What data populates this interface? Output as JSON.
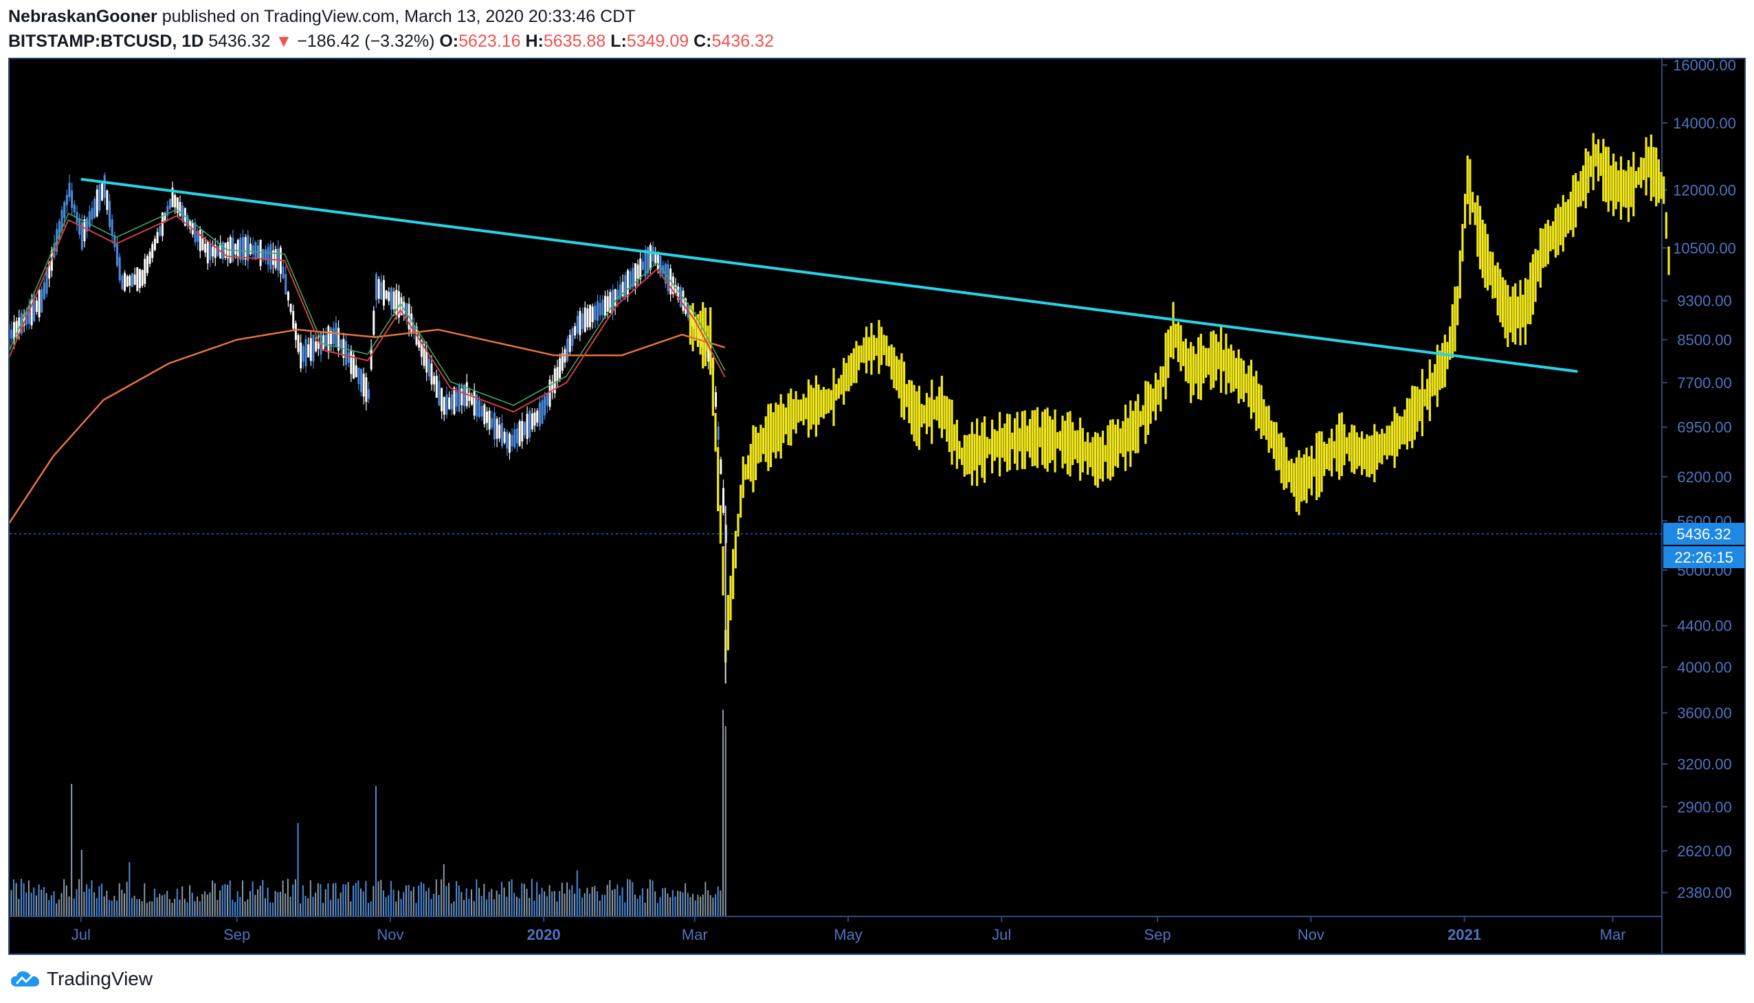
{
  "header": {
    "author": "NebraskanGooner",
    "published_text": "published on TradingView.com, March 13, 2020 20:33:46 CDT",
    "symbol": "BITSTAMP:BTCUSD, 1D",
    "last": "5436.32",
    "change": "−186.42 (−3.32%)",
    "o_label": "O:",
    "o_value": "5623.16",
    "h_label": "H:",
    "h_value": "5635.88",
    "l_label": "L:",
    "l_value": "5349.09",
    "c_label": "C:",
    "c_value": "5436.32",
    "down_arrow": "▼"
  },
  "footer": {
    "brand": "TradingView",
    "logo_icon": "tradingview-cloud-icon"
  },
  "chart_data": {
    "type": "line",
    "price_scale": "log",
    "y_ticks": [
      "16000.00",
      "14000.00",
      "12000.00",
      "10500.00",
      "9300.00",
      "8500.00",
      "7700.00",
      "6950.00",
      "6200.00",
      "5600.00",
      "5000.00",
      "4400.00",
      "4000.00",
      "3600.00",
      "3200.00",
      "2900.00",
      "2620.00",
      "2380.00"
    ],
    "x_ticks": [
      {
        "label": "Jul",
        "bold": false
      },
      {
        "label": "Sep",
        "bold": false
      },
      {
        "label": "Nov",
        "bold": false
      },
      {
        "label": "2020",
        "bold": true
      },
      {
        "label": "Mar",
        "bold": false
      },
      {
        "label": "May",
        "bold": false
      },
      {
        "label": "Jul",
        "bold": false
      },
      {
        "label": "Sep",
        "bold": false
      },
      {
        "label": "Nov",
        "bold": false
      },
      {
        "label": "2021",
        "bold": true
      },
      {
        "label": "Mar",
        "bold": false
      }
    ],
    "last_price": {
      "value": 5436.32,
      "label": "5436.32",
      "countdown": "22:26:15"
    },
    "price_series": [
      {
        "date": "2019-06-01",
        "close": 8500
      },
      {
        "date": "2019-06-15",
        "close": 9300
      },
      {
        "date": "2019-06-26",
        "close": 12000
      },
      {
        "date": "2019-07-01",
        "close": 10800
      },
      {
        "date": "2019-07-10",
        "close": 12100
      },
      {
        "date": "2019-07-17",
        "close": 9700
      },
      {
        "date": "2019-07-25",
        "close": 9800
      },
      {
        "date": "2019-08-06",
        "close": 11800
      },
      {
        "date": "2019-08-20",
        "close": 10400
      },
      {
        "date": "2019-09-05",
        "close": 10500
      },
      {
        "date": "2019-09-18",
        "close": 10200
      },
      {
        "date": "2019-09-26",
        "close": 8200
      },
      {
        "date": "2019-10-10",
        "close": 8600
      },
      {
        "date": "2019-10-23",
        "close": 7500
      },
      {
        "date": "2019-10-26",
        "close": 9600
      },
      {
        "date": "2019-11-07",
        "close": 9100
      },
      {
        "date": "2019-11-22",
        "close": 7300
      },
      {
        "date": "2019-12-01",
        "close": 7500
      },
      {
        "date": "2019-12-18",
        "close": 6700
      },
      {
        "date": "2019-12-31",
        "close": 7200
      },
      {
        "date": "2020-01-14",
        "close": 8800
      },
      {
        "date": "2020-01-28",
        "close": 9300
      },
      {
        "date": "2020-02-13",
        "close": 10350
      },
      {
        "date": "2020-02-25",
        "close": 9300
      },
      {
        "date": "2020-03-08",
        "close": 8000
      },
      {
        "date": "2020-03-13",
        "close": 5436
      }
    ],
    "overlay_series": [
      {
        "date": "2020-02-28",
        "close": 8800
      },
      {
        "date": "2020-03-07",
        "close": 8500
      },
      {
        "date": "2020-03-12",
        "close": 5000
      },
      {
        "date": "2020-03-13",
        "close": 4200
      },
      {
        "date": "2020-03-20",
        "close": 6200
      },
      {
        "date": "2020-03-27",
        "close": 6700
      },
      {
        "date": "2020-04-10",
        "close": 7200
      },
      {
        "date": "2020-04-24",
        "close": 7400
      },
      {
        "date": "2020-05-07",
        "close": 8300
      },
      {
        "date": "2020-05-15",
        "close": 8400
      },
      {
        "date": "2020-05-28",
        "close": 7100
      },
      {
        "date": "2020-06-07",
        "close": 7300
      },
      {
        "date": "2020-06-15",
        "close": 6500
      },
      {
        "date": "2020-06-30",
        "close": 6700
      },
      {
        "date": "2020-07-15",
        "close": 6800
      },
      {
        "date": "2020-07-29",
        "close": 6700
      },
      {
        "date": "2020-08-08",
        "close": 6450
      },
      {
        "date": "2020-08-22",
        "close": 6900
      },
      {
        "date": "2020-09-02",
        "close": 7600
      },
      {
        "date": "2020-09-07",
        "close": 8700
      },
      {
        "date": "2020-09-14",
        "close": 7900
      },
      {
        "date": "2020-09-25",
        "close": 8200
      },
      {
        "date": "2020-10-08",
        "close": 7600
      },
      {
        "date": "2020-10-21",
        "close": 6400
      },
      {
        "date": "2020-10-26",
        "close": 6100
      },
      {
        "date": "2020-11-04",
        "close": 6400
      },
      {
        "date": "2020-11-13",
        "close": 6700
      },
      {
        "date": "2020-11-24",
        "close": 6500
      },
      {
        "date": "2020-12-07",
        "close": 6900
      },
      {
        "date": "2020-12-17",
        "close": 7500
      },
      {
        "date": "2020-12-25",
        "close": 8200
      },
      {
        "date": "2020-12-29",
        "close": 9200
      },
      {
        "date": "2021-01-02",
        "close": 12300
      },
      {
        "date": "2021-01-08",
        "close": 10500
      },
      {
        "date": "2021-01-18",
        "close": 9000
      },
      {
        "date": "2021-01-25",
        "close": 9100
      },
      {
        "date": "2021-02-01",
        "close": 10500
      },
      {
        "date": "2021-02-11",
        "close": 11300
      },
      {
        "date": "2021-02-22",
        "close": 13000
      },
      {
        "date": "2021-02-28",
        "close": 12200
      },
      {
        "date": "2021-03-07",
        "close": 12000
      },
      {
        "date": "2021-03-15",
        "close": 12800
      },
      {
        "date": "2021-03-21",
        "close": 12000
      },
      {
        "date": "2021-03-23",
        "close": 10200
      }
    ],
    "ma_long": [
      {
        "date": "2019-06-01",
        "value": 5500
      },
      {
        "date": "2019-06-20",
        "value": 6500
      },
      {
        "date": "2019-07-10",
        "value": 7400
      },
      {
        "date": "2019-08-05",
        "value": 8050
      },
      {
        "date": "2019-09-01",
        "value": 8500
      },
      {
        "date": "2019-09-25",
        "value": 8700
      },
      {
        "date": "2019-10-26",
        "value": 8550
      },
      {
        "date": "2019-11-20",
        "value": 8700
      },
      {
        "date": "2020-01-05",
        "value": 8200
      },
      {
        "date": "2020-02-01",
        "value": 8200
      },
      {
        "date": "2020-02-25",
        "value": 8600
      },
      {
        "date": "2020-03-13",
        "value": 8350
      }
    ],
    "ma_short": [
      {
        "date": "2019-06-01",
        "value": 8000
      },
      {
        "date": "2019-06-26",
        "value": 11200
      },
      {
        "date": "2019-07-15",
        "value": 10600
      },
      {
        "date": "2019-08-08",
        "value": 11300
      },
      {
        "date": "2019-08-28",
        "value": 10300
      },
      {
        "date": "2019-09-20",
        "value": 10200
      },
      {
        "date": "2019-10-05",
        "value": 8300
      },
      {
        "date": "2019-10-23",
        "value": 8100
      },
      {
        "date": "2019-11-05",
        "value": 9100
      },
      {
        "date": "2019-11-25",
        "value": 7600
      },
      {
        "date": "2019-12-20",
        "value": 7200
      },
      {
        "date": "2020-01-10",
        "value": 7700
      },
      {
        "date": "2020-01-30",
        "value": 9200
      },
      {
        "date": "2020-02-15",
        "value": 10000
      },
      {
        "date": "2020-03-01",
        "value": 8900
      },
      {
        "date": "2020-03-13",
        "value": 7800
      }
    ],
    "trendline": {
      "start": {
        "date": "2019-07-01",
        "value": 12300
      },
      "end": {
        "date": "2021-02-15",
        "value": 7900
      }
    },
    "volume": [
      {
        "date": "2019-06-27",
        "value": 640
      },
      {
        "date": "2019-07-01",
        "value": 320
      },
      {
        "date": "2019-07-20",
        "value": 260
      },
      {
        "date": "2019-09-25",
        "value": 450
      },
      {
        "date": "2019-10-26",
        "value": 630
      },
      {
        "date": "2019-11-22",
        "value": 250
      },
      {
        "date": "2020-01-14",
        "value": 220
      },
      {
        "date": "2020-03-12",
        "value": 1000
      },
      {
        "date": "2020-03-13",
        "value": 920
      }
    ],
    "colors": {
      "background": "#000000",
      "axis": "#2a4a7a",
      "axis_text": "#4f74c0",
      "trendline": "#26d4e8",
      "overlay": "#f2e81c",
      "ma_long": "#e8743b",
      "ma_short": "#d63f3f",
      "ma_mid": "#3fa864",
      "candle_up": "#ffffff",
      "candle_down": "#4a8be0",
      "volume": "#8a9aa8",
      "price_label": "#1e88e5"
    }
  }
}
